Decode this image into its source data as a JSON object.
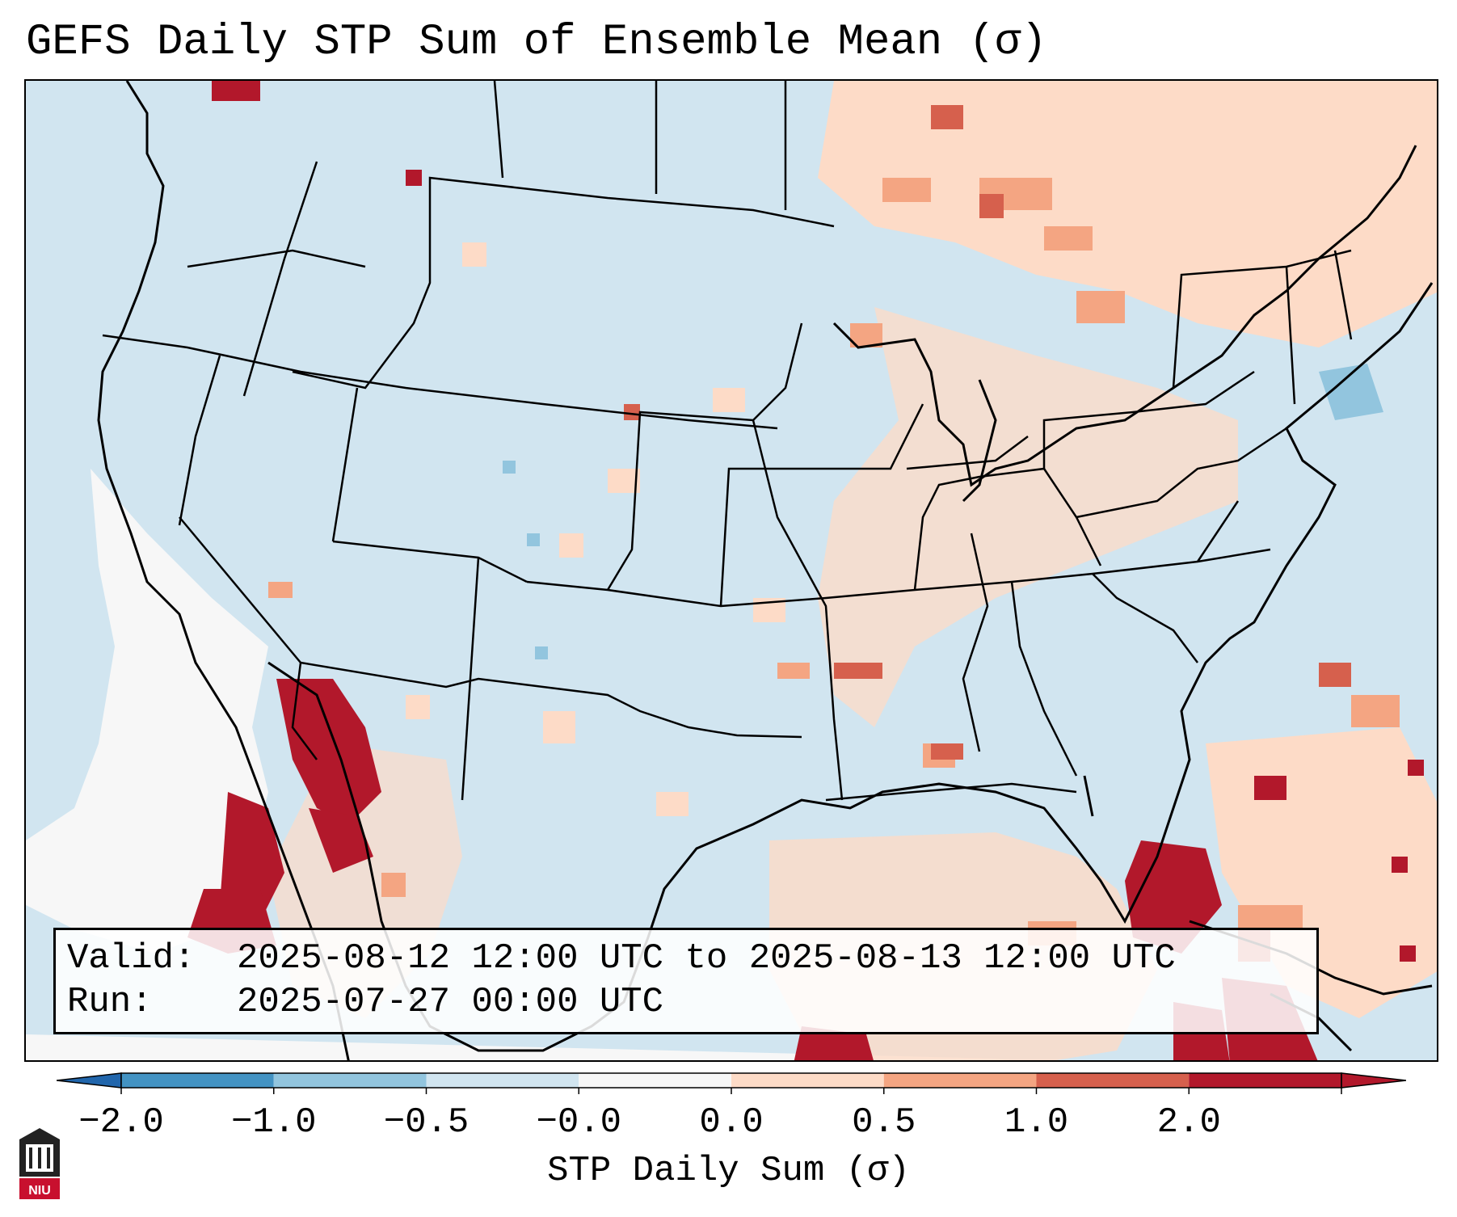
{
  "title": "GEFS Daily STP Sum of Ensemble Mean (σ)",
  "valid_label": "Valid:",
  "valid_value": "2025-08-12 12:00 UTC to 2025-08-13 12:00 UTC",
  "run_label": "Run:",
  "run_value": "2025-07-27 00:00 UTC",
  "colorbar": {
    "label": "STP Daily Sum (σ)",
    "ticks": [
      "−2.0",
      "−1.0",
      "−0.5",
      "−0.0",
      "0.0",
      "0.5",
      "1.0",
      "2.0"
    ],
    "colors": [
      "#4393c3",
      "#92c5de",
      "#d1e5f0",
      "#f7f7f7",
      "#fddbc7",
      "#f4a582",
      "#d6604d",
      "#b2182b"
    ],
    "extend_low": "#2166ac",
    "extend_high": "#b2182b"
  },
  "map": {
    "background_class": "-0.5 to -0.0",
    "ocean_white_region": "Pacific off Baja California",
    "hotspots": [
      "Gulf of California / Sonora",
      "Florida peninsula",
      "Bahamas",
      "Gulf of Mexico south",
      "Ontario / Quebec"
    ]
  },
  "logo": {
    "text": "NIU"
  }
}
